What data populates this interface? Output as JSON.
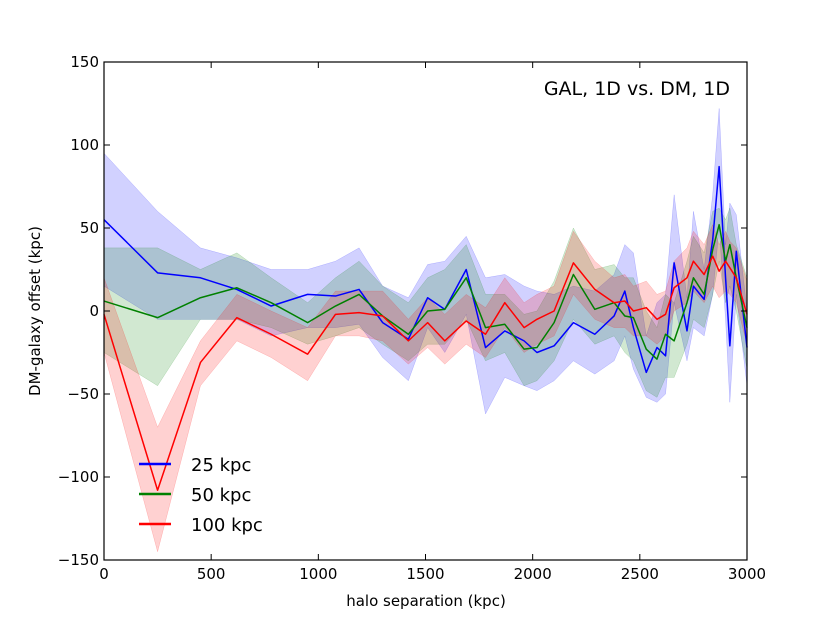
{
  "chart_data": {
    "type": "line",
    "annotation": "GAL, 1D vs. DM, 1D",
    "xlabel": "halo separation (kpc)",
    "ylabel": "DM-galaxy offset (kpc)",
    "xlim": [
      0,
      3000
    ],
    "ylim": [
      -150,
      150
    ],
    "xticks": [
      0,
      500,
      1000,
      1500,
      2000,
      2500,
      3000
    ],
    "xtick_labels": [
      "0",
      "500",
      "1000",
      "1500",
      "2000",
      "2500",
      "3000"
    ],
    "yticks": [
      -150,
      -100,
      -50,
      0,
      50,
      100,
      150
    ],
    "ytick_labels": [
      "−150",
      "−100",
      "−50",
      "0",
      "50",
      "100",
      "150"
    ],
    "legend_position": "lower-left",
    "series": [
      {
        "name": "25 kpc",
        "color": "#0000ff",
        "x": [
          0,
          250,
          450,
          620,
          780,
          950,
          1080,
          1190,
          1300,
          1420,
          1510,
          1590,
          1690,
          1780,
          1870,
          1960,
          2020,
          2100,
          2190,
          2290,
          2380,
          2430,
          2470,
          2530,
          2580,
          2620,
          2660,
          2720,
          2750,
          2800,
          2840,
          2870,
          2900,
          2920,
          2950,
          3000
        ],
        "y": [
          55,
          23,
          20,
          13,
          3,
          10,
          9,
          13,
          -7,
          -17,
          8,
          1,
          25,
          -22,
          -12,
          -18,
          -25,
          -21,
          -7,
          -14,
          -3,
          12,
          -10,
          -37,
          -22,
          -27,
          29,
          -12,
          15,
          7,
          43,
          87,
          20,
          -21,
          36,
          -22
        ],
        "lower": [
          15,
          -5,
          -5,
          -5,
          -15,
          -10,
          -10,
          -8,
          -28,
          -42,
          -10,
          -25,
          -2,
          -62,
          -40,
          -45,
          -48,
          -42,
          -30,
          -38,
          -30,
          -15,
          -35,
          -52,
          -55,
          -50,
          5,
          -30,
          -10,
          -15,
          10,
          50,
          -5,
          -55,
          10,
          -45
        ],
        "upper": [
          95,
          60,
          38,
          32,
          25,
          25,
          30,
          38,
          15,
          8,
          28,
          30,
          45,
          20,
          22,
          15,
          12,
          10,
          15,
          12,
          22,
          40,
          35,
          -15,
          5,
          10,
          70,
          8,
          60,
          25,
          70,
          122,
          40,
          65,
          58,
          0
        ]
      },
      {
        "name": "50 kpc",
        "color": "#008000",
        "x": [
          0,
          250,
          450,
          620,
          780,
          950,
          1080,
          1190,
          1300,
          1420,
          1510,
          1590,
          1690,
          1780,
          1870,
          1960,
          2020,
          2100,
          2190,
          2290,
          2380,
          2430,
          2470,
          2530,
          2580,
          2620,
          2660,
          2720,
          2750,
          2800,
          2840,
          2870,
          2900,
          2920,
          2950,
          3000
        ],
        "y": [
          6,
          -4,
          8,
          14,
          5,
          -7,
          3,
          10,
          -3,
          -14,
          0,
          1,
          20,
          -10,
          -8,
          -23,
          -22,
          -7,
          22,
          1,
          5,
          -3,
          -4,
          -23,
          -29,
          -14,
          -18,
          5,
          20,
          10,
          37,
          52,
          30,
          40,
          20,
          -10
        ],
        "lower": [
          -25,
          -45,
          -5,
          -5,
          -10,
          -20,
          -15,
          -10,
          -20,
          -30,
          -20,
          -20,
          -5,
          -30,
          -25,
          -45,
          -42,
          -30,
          -5,
          -20,
          -15,
          -25,
          -30,
          -48,
          -52,
          -40,
          -40,
          -20,
          -5,
          -10,
          10,
          30,
          5,
          15,
          0,
          -35
        ],
        "upper": [
          38,
          38,
          25,
          35,
          20,
          5,
          20,
          30,
          15,
          5,
          20,
          25,
          40,
          10,
          10,
          -2,
          0,
          18,
          50,
          25,
          28,
          20,
          20,
          0,
          -10,
          10,
          5,
          30,
          45,
          35,
          60,
          62,
          55,
          62,
          40,
          20
        ]
      },
      {
        "name": "100 kpc",
        "color": "#ff0000",
        "x": [
          0,
          250,
          450,
          620,
          780,
          950,
          1080,
          1190,
          1300,
          1420,
          1510,
          1590,
          1690,
          1780,
          1870,
          1960,
          2020,
          2100,
          2190,
          2290,
          2380,
          2430,
          2470,
          2530,
          2580,
          2620,
          2660,
          2720,
          2750,
          2800,
          2840,
          2870,
          2900,
          2920,
          2950,
          3000
        ],
        "y": [
          -2,
          -108,
          -31,
          -4,
          -14,
          -26,
          -2,
          -1,
          -3,
          -18,
          -7,
          -18,
          -6,
          -14,
          5,
          -10,
          -5,
          0,
          29,
          13,
          5,
          6,
          0,
          2,
          -5,
          -2,
          14,
          20,
          30,
          22,
          33,
          24,
          30,
          26,
          20,
          -2
        ],
        "lower": [
          -25,
          -145,
          -45,
          -18,
          -28,
          -42,
          -15,
          -15,
          -18,
          -32,
          -22,
          -32,
          -20,
          -28,
          -10,
          -25,
          -20,
          -15,
          10,
          -5,
          -10,
          -10,
          -15,
          -15,
          -20,
          -15,
          0,
          5,
          12,
          5,
          15,
          8,
          12,
          10,
          5,
          -20
        ],
        "upper": [
          20,
          -70,
          -18,
          10,
          0,
          -10,
          12,
          12,
          12,
          -5,
          8,
          -2,
          10,
          2,
          20,
          5,
          10,
          15,
          48,
          30,
          20,
          22,
          15,
          18,
          10,
          12,
          30,
          38,
          48,
          40,
          52,
          40,
          48,
          42,
          38,
          18
        ]
      }
    ]
  }
}
